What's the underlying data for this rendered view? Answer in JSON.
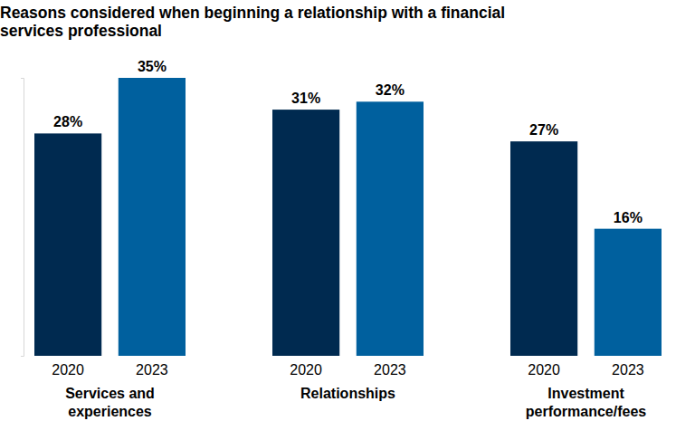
{
  "chart_data": {
    "type": "bar",
    "title": "Reasons considered when beginning a relationship with a financial services professional",
    "categories": [
      "Services and experiences",
      "Relationships",
      "Investment performance/fees"
    ],
    "series": [
      {
        "name": "2020",
        "color": "#002a50",
        "values": [
          28,
          31,
          27
        ],
        "value_labels": [
          "28%",
          "31%",
          "27%"
        ]
      },
      {
        "name": "2023",
        "color": "#00609e",
        "values": [
          35,
          32,
          16
        ],
        "value_labels": [
          "35%",
          "32%",
          "16%"
        ]
      }
    ],
    "ylim": [
      0,
      35
    ],
    "yticks": [
      0,
      35
    ],
    "grid": false,
    "data_labels": true,
    "tick_labels": "x"
  }
}
